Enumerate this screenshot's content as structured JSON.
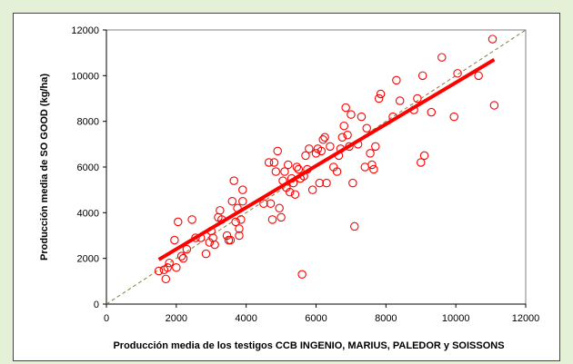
{
  "chart_data": {
    "type": "scatter",
    "title": "",
    "xlabel": "Producción media de los testigos CCB INGENIO, MARIUS, PALEDOR  y SOISSONS",
    "ylabel": "Producción media de SO GOOD (kg/ha)",
    "xlim": [
      0,
      12000
    ],
    "ylim": [
      0,
      12000
    ],
    "x_ticks": [
      "0",
      "2000",
      "4000",
      "6000",
      "8000",
      "10000",
      "12000"
    ],
    "y_ticks": [
      "0",
      "2000",
      "4000",
      "6000",
      "8000",
      "10000",
      "12000"
    ],
    "grid": false,
    "legend": "none",
    "colors": {
      "points": "#ff0000",
      "regression": "#ff0000",
      "identity": "#808040"
    },
    "series": [
      {
        "kind": "points",
        "x": [
          1500,
          1650,
          1700,
          1750,
          1800,
          1950,
          2000,
          2050,
          2150,
          2200,
          2300,
          2450,
          2550,
          2700,
          2850,
          2950,
          3000,
          3050,
          3100,
          3200,
          3250,
          3300,
          3450,
          3500,
          3550,
          3600,
          3650,
          3700,
          3750,
          3800,
          3800,
          3850,
          3900,
          3900,
          4500,
          4650,
          4700,
          4750,
          4800,
          4850,
          4900,
          4950,
          5000,
          5050,
          5100,
          5150,
          5200,
          5250,
          5300,
          5350,
          5400,
          5450,
          5500,
          5550,
          5600,
          5650,
          5700,
          5750,
          5800,
          5900,
          6000,
          6050,
          6100,
          6150,
          6200,
          6250,
          6300,
          6400,
          6500,
          6600,
          6650,
          6700,
          6750,
          6800,
          6850,
          6900,
          6950,
          7000,
          7050,
          7100,
          7200,
          7300,
          7400,
          7450,
          7550,
          7600,
          7650,
          7700,
          7800,
          7850,
          8200,
          8300,
          8400,
          8800,
          8900,
          9000,
          9050,
          9100,
          9300,
          9600,
          9950,
          10050,
          10650,
          11050,
          11100
        ],
        "y": [
          1450,
          1500,
          1100,
          1600,
          1800,
          2800,
          1600,
          3600,
          2100,
          2000,
          2400,
          3700,
          2900,
          2900,
          2200,
          2700,
          3200,
          2900,
          2600,
          3800,
          4100,
          3700,
          3000,
          2800,
          2800,
          4500,
          5400,
          3600,
          4200,
          3300,
          3000,
          3700,
          4500,
          5000,
          4400,
          6200,
          4400,
          3700,
          6200,
          5800,
          6700,
          4200,
          3800,
          5400,
          5800,
          5100,
          6100,
          4900,
          5500,
          5300,
          4800,
          6000,
          5900,
          5500,
          1300,
          5600,
          6500,
          5900,
          6800,
          5000,
          6600,
          6800,
          5300,
          6700,
          7200,
          7300,
          5300,
          6900,
          6000,
          5800,
          6500,
          6800,
          7300,
          7800,
          8600,
          7400,
          6900,
          8300,
          5300,
          3400,
          7000,
          8200,
          6000,
          7700,
          6600,
          6100,
          5900,
          6900,
          9000,
          9200,
          8200,
          9800,
          8900,
          8500,
          9000,
          6200,
          10000,
          6500,
          8400,
          10800,
          8200,
          10100,
          10000,
          11600,
          8700
        ]
      },
      {
        "kind": "regression",
        "x": [
          1500,
          11100
        ],
        "y": [
          1950,
          10700
        ]
      },
      {
        "kind": "identity",
        "x": [
          0,
          12000
        ],
        "y": [
          0,
          12000
        ]
      }
    ]
  }
}
